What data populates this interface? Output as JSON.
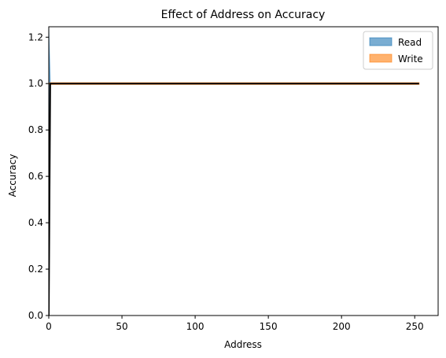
{
  "chart_data": {
    "type": "area",
    "title": "Effect of Address on Accuracy",
    "xlabel": "Address",
    "ylabel": "Accuracy",
    "xlim": [
      0,
      266
    ],
    "ylim": [
      0,
      1.245
    ],
    "xticks": [
      "0",
      "50",
      "100",
      "150",
      "200",
      "250"
    ],
    "yticks": [
      "0.0",
      "0.2",
      "0.4",
      "0.6",
      "0.8",
      "1.0",
      "1.2"
    ],
    "legend": {
      "placement": "top-right"
    },
    "grid": false,
    "x": [
      0,
      1,
      2,
      253
    ],
    "series": [
      {
        "name": "Read",
        "color": "#1f77b4",
        "alpha": 0.6,
        "upper": [
          1.245,
          1.0,
          1.0,
          1.0
        ],
        "lower": [
          0.3,
          1.0,
          1.0,
          1.0
        ]
      },
      {
        "name": "Write",
        "color": "#ff7f0e",
        "alpha": 0.6,
        "upper": [
          1.0,
          1.004,
          1.004,
          1.004
        ],
        "lower": [
          1.0,
          0.996,
          0.996,
          0.996
        ]
      }
    ],
    "mean_line": {
      "color": "#000000",
      "values": [
        0.0,
        1.0,
        1.0,
        1.0
      ]
    }
  }
}
